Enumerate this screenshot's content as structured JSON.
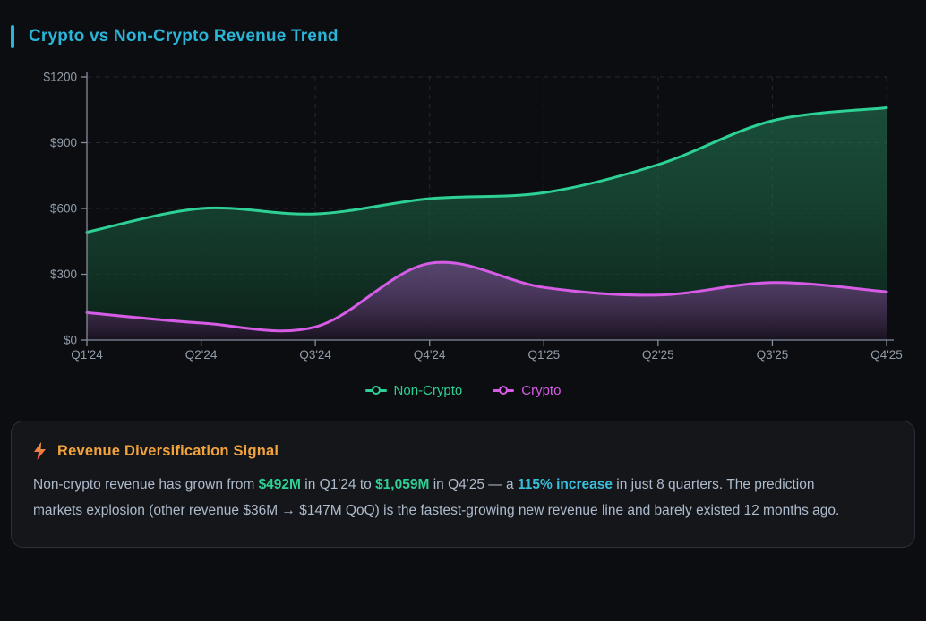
{
  "header": {
    "title": "Crypto vs Non-Crypto Revenue Trend"
  },
  "colors": {
    "accent_cyan": "#2ab5d8",
    "non_crypto_green": "#2ed195",
    "crypto_magenta": "#d65ce6",
    "heading_orange": "#f2a33c",
    "card_bg": "#14161a",
    "page_bg": "#0b0d10"
  },
  "chart_data": {
    "type": "area",
    "title": "Crypto vs Non-Crypto Revenue Trend",
    "categories": [
      "Q1'24",
      "Q2'24",
      "Q3'24",
      "Q4'24",
      "Q1'25",
      "Q2'25",
      "Q3'25",
      "Q4'25"
    ],
    "series": [
      {
        "name": "Non-Crypto",
        "color": "#2ed195",
        "values": [
          492,
          600,
          575,
          645,
          672,
          800,
          1000,
          1059
        ]
      },
      {
        "name": "Crypto",
        "color": "#d65ce6",
        "values": [
          125,
          78,
          60,
          350,
          240,
          205,
          262,
          220
        ]
      }
    ],
    "xlabel": "",
    "ylabel": "",
    "ylim": [
      0,
      1200
    ],
    "y_ticks": [
      0,
      300,
      600,
      900,
      1200
    ],
    "y_tick_labels": [
      "$0",
      "$300",
      "$600",
      "$900",
      "$1200"
    ],
    "grid": true,
    "legend_position": "bottom"
  },
  "legend": {
    "items": [
      {
        "label": "Non-Crypto",
        "color": "#2ed195"
      },
      {
        "label": "Crypto",
        "color": "#d65ce6"
      }
    ]
  },
  "insight": {
    "icon": "lightning-icon",
    "title": "Revenue Diversification Signal",
    "segments": [
      {
        "text": "Non-crypto revenue has grown from "
      },
      {
        "text": "$492M",
        "style": "green"
      },
      {
        "text": " in Q1'24 to "
      },
      {
        "text": "$1,059M",
        "style": "green"
      },
      {
        "text": " in Q4'25 — a "
      },
      {
        "text": "115% increase",
        "style": "cyan"
      },
      {
        "text": " in just 8 quarters. The prediction markets explosion (other revenue $36M → $147M QoQ) is the fastest-growing new revenue line and barely existed 12 months ago."
      }
    ]
  }
}
